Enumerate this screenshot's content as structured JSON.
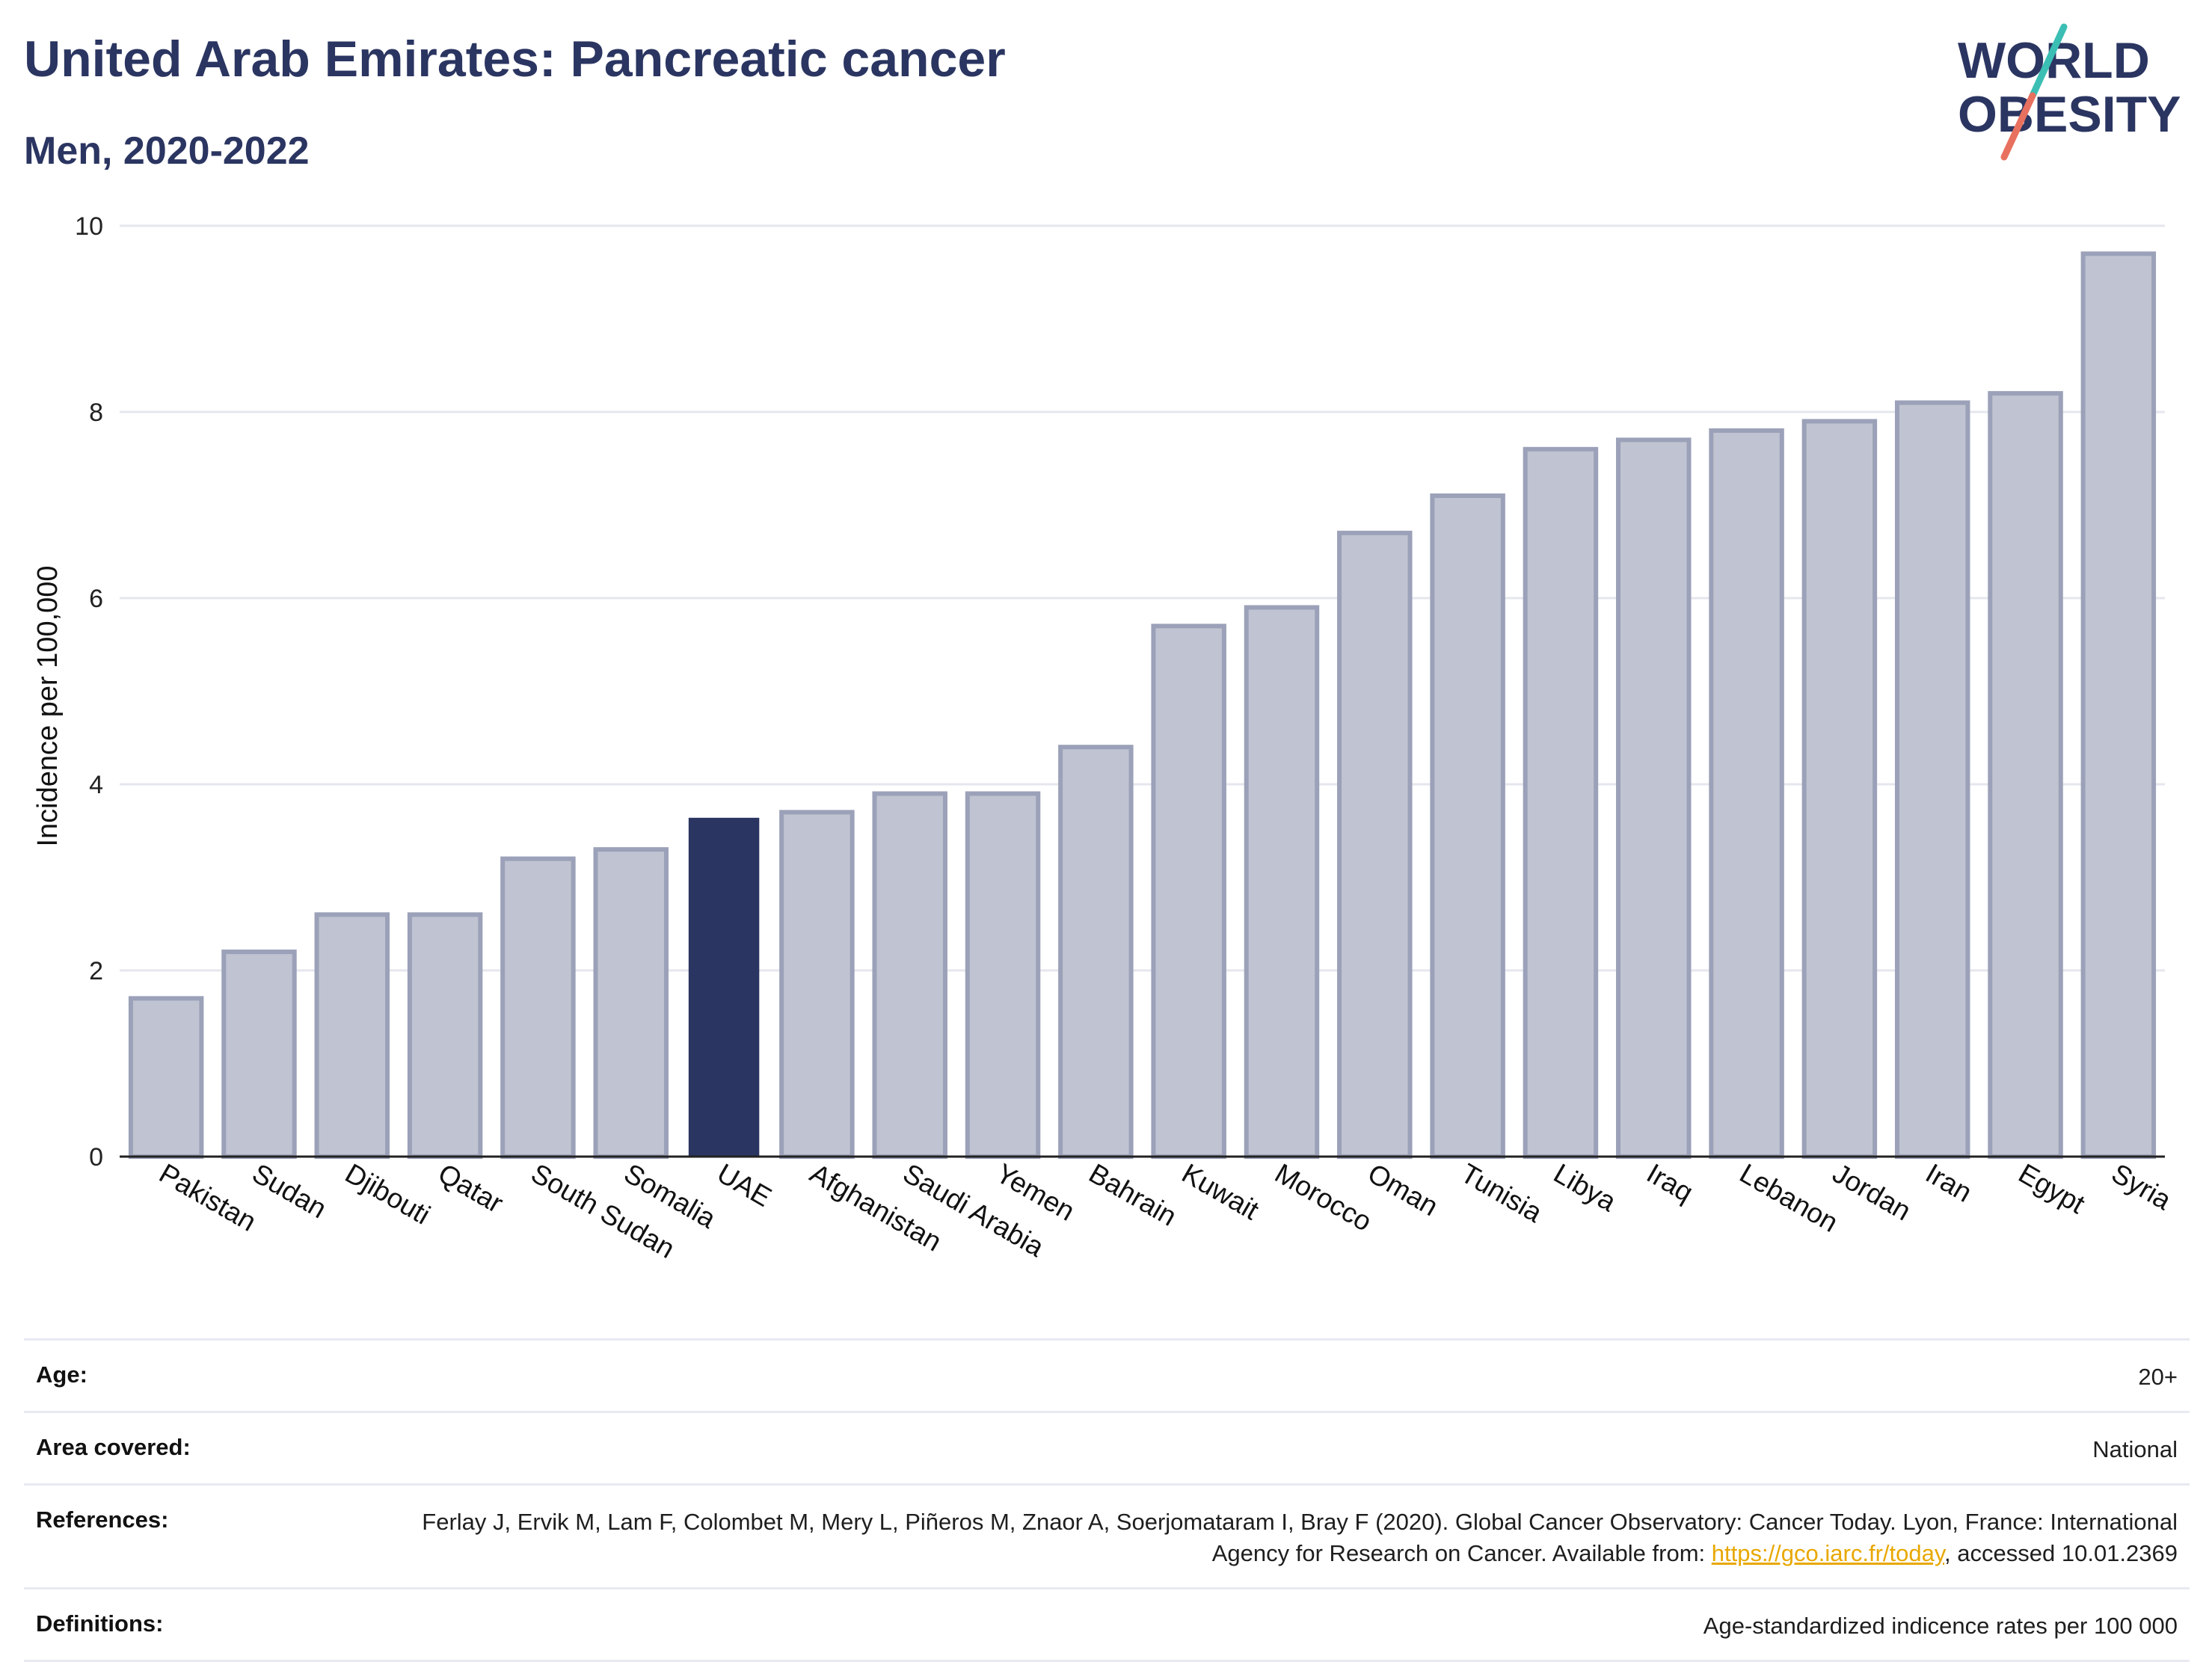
{
  "header": {
    "title": "United Arab Emirates: Pancreatic cancer",
    "subtitle": "Men, 2020-2022"
  },
  "logo": {
    "line1": "WORLD",
    "line2": "OBESITY",
    "accent_top": "#3bbfb4",
    "accent_bottom": "#e8705f",
    "text_color": "#2b3561"
  },
  "colors": {
    "bar": "#c0c3d1",
    "bar_border": "#9ba1b8",
    "highlight": "#2b3561",
    "grid": "#e6e7ee"
  },
  "chart_data": {
    "type": "bar",
    "ylabel": "Incidence per 100,000",
    "xlabel": "",
    "ylim": [
      0,
      10
    ],
    "yticks": [
      0,
      2,
      4,
      6,
      8,
      10
    ],
    "grid": true,
    "highlight": "UAE",
    "categories": [
      "Pakistan",
      "Sudan",
      "Djibouti",
      "Qatar",
      "South Sudan",
      "Somalia",
      "UAE",
      "Afghanistan",
      "Saudi Arabia",
      "Yemen",
      "Bahrain",
      "Kuwait",
      "Morocco",
      "Oman",
      "Tunisia",
      "Libya",
      "Iraq",
      "Lebanon",
      "Jordan",
      "Iran",
      "Egypt",
      "Syria"
    ],
    "values": [
      1.7,
      2.2,
      2.6,
      2.6,
      3.2,
      3.3,
      3.64,
      3.7,
      3.9,
      3.9,
      4.4,
      5.7,
      5.9,
      6.7,
      7.1,
      7.6,
      7.7,
      7.8,
      7.9,
      8.1,
      8.2,
      9.7
    ]
  },
  "meta": {
    "age": {
      "label": "Age:",
      "value": "20+"
    },
    "area": {
      "label": "Area covered:",
      "value": "National"
    },
    "references": {
      "label": "References:",
      "text_before": "Ferlay J, Ervik M, Lam F, Colombet M, Mery L, Piñeros M, Znaor A, Soerjomataram I, Bray F (2020). Global Cancer Observatory: Cancer Today. Lyon, France: International Agency for Research on Cancer. Available from: ",
      "link": "https://gco.iarc.fr/today",
      "text_after": ", accessed 10.01.2369"
    },
    "definitions": {
      "label": "Definitions:",
      "value": "Age-standardized indicence rates per 100 000"
    }
  }
}
